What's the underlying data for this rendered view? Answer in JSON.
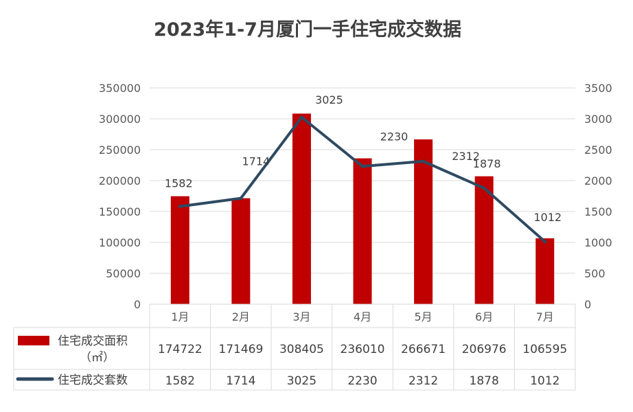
{
  "chart_data": {
    "type": "bar+line",
    "title": "2023年1-7月厦门一手住宅成交数据",
    "categories": [
      "1月",
      "2月",
      "3月",
      "4月",
      "5月",
      "6月",
      "7月"
    ],
    "series": [
      {
        "name": "住宅成交面积（㎡）",
        "name_line1": "住宅成交面积",
        "name_line2": "（㎡）",
        "type": "bar",
        "axis": "left",
        "color": "#c00000",
        "values": [
          174722,
          171469,
          308405,
          236010,
          266671,
          206976,
          106595
        ]
      },
      {
        "name": "住宅成交套数",
        "type": "line",
        "axis": "right",
        "color": "#2e4a62",
        "values": [
          1582,
          1714,
          3025,
          2230,
          2312,
          1878,
          1012
        ]
      }
    ],
    "y_left": {
      "min": 0,
      "max": 350000,
      "ticks": [
        0,
        50000,
        100000,
        150000,
        200000,
        250000,
        300000,
        350000
      ]
    },
    "y_right": {
      "min": 0,
      "max": 3500,
      "ticks": [
        0,
        500,
        1000,
        1500,
        2000,
        2500,
        3000,
        3500
      ]
    },
    "grid": true,
    "legend": "data-table"
  }
}
